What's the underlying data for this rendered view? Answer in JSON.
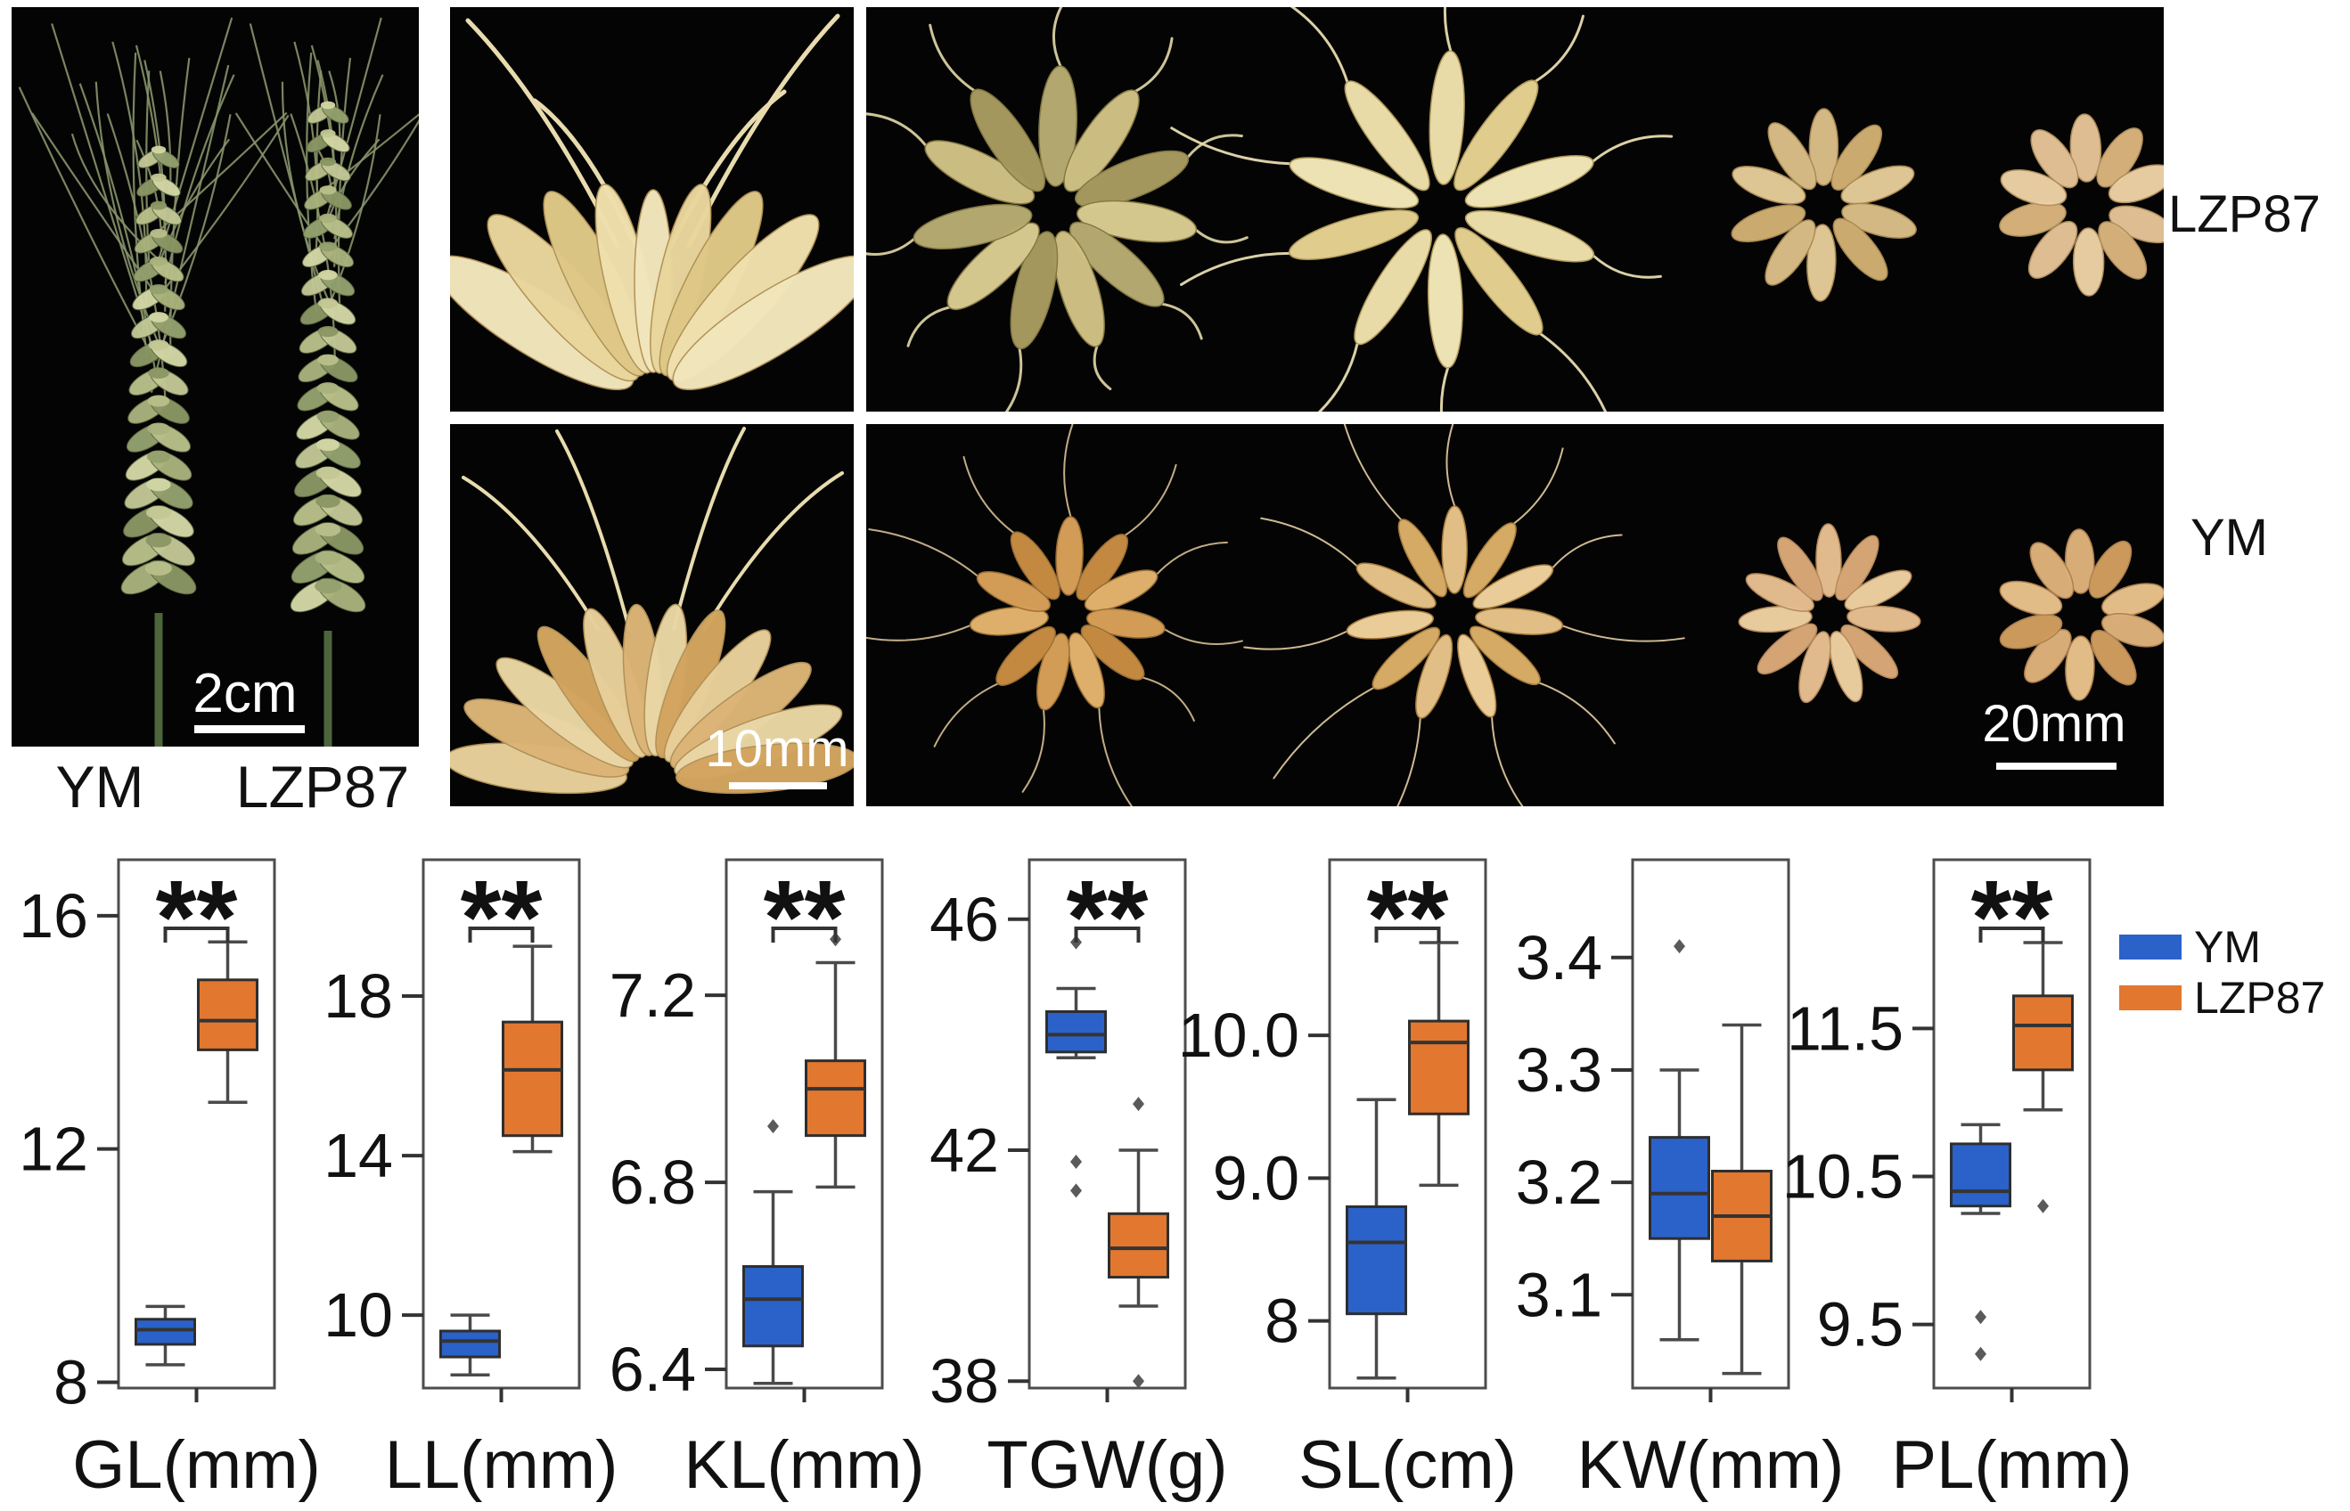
{
  "photos": {
    "spike_panel": {
      "scale_bar": "2cm",
      "label_left": "YM",
      "label_right": "LZP87"
    },
    "spikelet_panel": {
      "scale_bar": "10mm"
    },
    "grain_panel": {
      "scale_bar": "20mm",
      "row_top_label": "LZP87",
      "row_bottom_label": "YM"
    }
  },
  "legend": {
    "items": [
      {
        "label": "YM",
        "color": "#2b62c9"
      },
      {
        "label": "LZP87",
        "color": "#e2772f"
      }
    ]
  },
  "chart_data": {
    "type": "box",
    "groups": [
      "YM",
      "LZP87"
    ],
    "group_colors": {
      "YM": "#2b62c9",
      "LZP87": "#e2772f"
    },
    "legend_position": "right",
    "significance_marker": "**",
    "panels": [
      {
        "label": "GL(mm)",
        "significance": "**",
        "yticks": [
          "16",
          "12",
          "8"
        ],
        "ylim": [
          7.9,
          16.96
        ],
        "YM": {
          "whisker_low": 8.3,
          "q1": 8.65,
          "median": 8.9,
          "q3": 9.08,
          "whisker_high": 9.3,
          "outliers": []
        },
        "LZP87": {
          "whisker_low": 12.8,
          "q1": 13.7,
          "median": 14.2,
          "q3": 14.9,
          "whisker_high": 15.55,
          "outliers": []
        }
      },
      {
        "label": "LL(mm)",
        "significance": "**",
        "yticks": [
          "18",
          "14",
          "10"
        ],
        "ylim": [
          8.17,
          21.42
        ],
        "YM": {
          "whisker_low": 8.5,
          "q1": 8.95,
          "median": 9.35,
          "q3": 9.6,
          "whisker_high": 10.0,
          "outliers": []
        },
        "LZP87": {
          "whisker_low": 14.1,
          "q1": 14.5,
          "median": 16.15,
          "q3": 17.35,
          "whisker_high": 19.25,
          "outliers": []
        }
      },
      {
        "label": "KL(mm)",
        "significance": "**",
        "yticks": [
          "7.2",
          "6.8",
          "6.4"
        ],
        "ylim": [
          6.36,
          7.49
        ],
        "YM": {
          "whisker_low": 6.37,
          "q1": 6.45,
          "median": 6.55,
          "q3": 6.62,
          "whisker_high": 6.78,
          "outliers": [
            6.92
          ]
        },
        "LZP87": {
          "whisker_low": 6.79,
          "q1": 6.9,
          "median": 7.0,
          "q3": 7.06,
          "whisker_high": 7.27,
          "outliers": [
            7.32
          ]
        }
      },
      {
        "label": "TGW(g)",
        "significance": "**",
        "yticks": [
          "46",
          "42",
          "38"
        ],
        "ylim": [
          37.88,
          47.03
        ],
        "YM": {
          "whisker_low": 43.6,
          "q1": 43.7,
          "median": 44.0,
          "q3": 44.4,
          "whisker_high": 44.8,
          "outliers": [
            45.6,
            41.8,
            41.3
          ]
        },
        "LZP87": {
          "whisker_low": 39.3,
          "q1": 39.8,
          "median": 40.3,
          "q3": 40.9,
          "whisker_high": 42.0,
          "outliers": [
            42.8,
            38.0
          ]
        }
      },
      {
        "label": "SL(cm)",
        "significance": "**",
        "yticks": [
          "10.0",
          "9.0",
          "8"
        ],
        "ylim": [
          7.53,
          11.23
        ],
        "YM": {
          "whisker_low": 7.6,
          "q1": 8.05,
          "median": 8.55,
          "q3": 8.8,
          "whisker_high": 9.55,
          "outliers": []
        },
        "LZP87": {
          "whisker_low": 8.95,
          "q1": 9.45,
          "median": 9.95,
          "q3": 10.1,
          "whisker_high": 10.65,
          "outliers": []
        }
      },
      {
        "label": "KW(mm)",
        "significance": null,
        "yticks": [
          "3.4",
          "3.3",
          "3.2",
          "3.1"
        ],
        "ylim": [
          3.017,
          3.487
        ],
        "YM": {
          "whisker_low": 3.06,
          "q1": 3.15,
          "median": 3.19,
          "q3": 3.24,
          "whisker_high": 3.3,
          "outliers": [
            3.41
          ]
        },
        "LZP87": {
          "whisker_low": 3.03,
          "q1": 3.13,
          "median": 3.17,
          "q3": 3.21,
          "whisker_high": 3.34,
          "outliers": []
        }
      },
      {
        "label": "PL(mm)",
        "significance": "**",
        "yticks": [
          "11.5",
          "10.5",
          "9.5"
        ],
        "ylim": [
          9.07,
          12.64
        ],
        "YM": {
          "whisker_low": 10.25,
          "q1": 10.3,
          "median": 10.4,
          "q3": 10.72,
          "whisker_high": 10.85,
          "outliers": [
            9.55,
            9.3
          ]
        },
        "LZP87": {
          "whisker_low": 10.95,
          "q1": 11.22,
          "median": 11.52,
          "q3": 11.72,
          "whisker_high": 12.08,
          "outliers": [
            10.3
          ]
        }
      }
    ]
  }
}
